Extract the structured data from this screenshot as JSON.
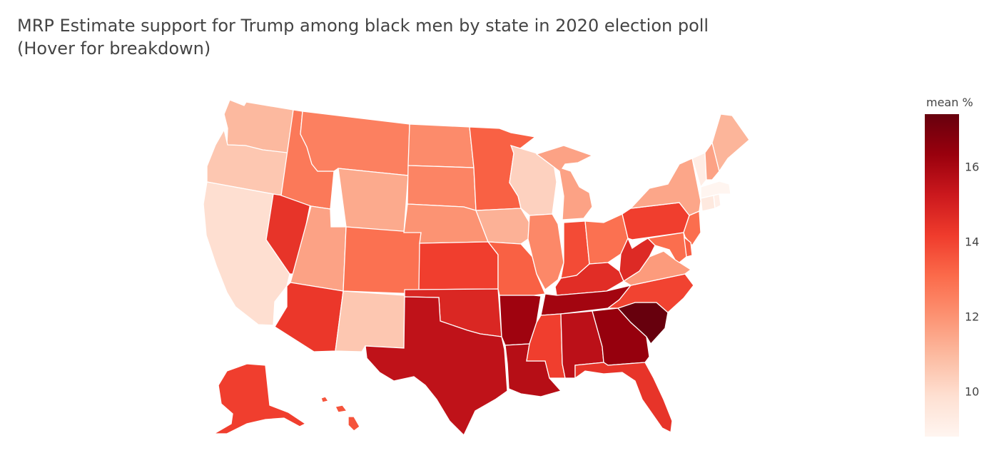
{
  "title": {
    "line1": "MRP Estimate support for Trump among black men by state in 2020 election poll",
    "line2": "(Hover for breakdown)"
  },
  "colorbar": {
    "title": "mean %",
    "min": 8.8,
    "max": 17.4,
    "ticks": [
      {
        "value": 10,
        "label": "10"
      },
      {
        "value": 12,
        "label": "12"
      },
      {
        "value": 14,
        "label": "14"
      },
      {
        "value": 16,
        "label": "16"
      }
    ],
    "colors": [
      "#fff5f0",
      "#fee0d2",
      "#fcbba1",
      "#fc9272",
      "#fb6a4a",
      "#ef3b2c",
      "#cb181d",
      "#99000d",
      "#67000d"
    ]
  },
  "chart_data": {
    "type": "choropleth",
    "scope": "usa",
    "metric": "mean %",
    "values": {
      "WA": 11.0,
      "OR": 10.6,
      "CA": 9.9,
      "NV": 14.4,
      "ID": 12.7,
      "MT": 12.5,
      "WY": 11.4,
      "UT": 11.6,
      "CO": 12.9,
      "AZ": 14.3,
      "NM": 10.6,
      "ND": 12.2,
      "SD": 12.4,
      "NE": 12.0,
      "KS": 14.1,
      "OK": 14.8,
      "TX": 15.5,
      "MN": 13.3,
      "IA": 11.2,
      "MO": 13.3,
      "AR": 16.2,
      "LA": 15.7,
      "WI": 10.3,
      "IL": 12.3,
      "MI": 11.6,
      "IN": 13.8,
      "OH": 12.9,
      "KY": 14.6,
      "TN": 16.1,
      "MS": 14.1,
      "AL": 15.6,
      "GA": 16.4,
      "FL": 14.4,
      "SC": 17.4,
      "NC": 14.0,
      "VA": 11.8,
      "WV": 14.7,
      "PA": 14.1,
      "NY": 11.5,
      "ME": 11.1,
      "VT": 9.2,
      "NH": 11.6,
      "MA": 8.8,
      "RI": 9.1,
      "CT": 9.4,
      "NJ": 13.0,
      "DE": 13.4,
      "MD": 13.0,
      "AK": 14.1,
      "HI": 13.6
    }
  }
}
